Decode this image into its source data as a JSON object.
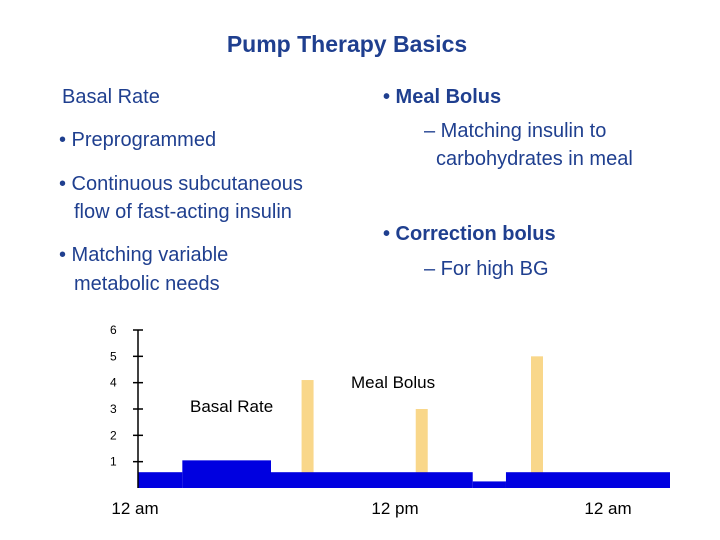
{
  "title": "Pump Therapy Basics",
  "left_column": {
    "heading": "Basal Rate",
    "bullets": [
      {
        "line1": "• Preprogrammed",
        "line2": ""
      },
      {
        "line1": "• Continuous subcutaneous",
        "line2": "flow of fast-acting insulin"
      },
      {
        "line1": "• Matching variable",
        "line2": "metabolic needs"
      }
    ]
  },
  "right_column": {
    "meal_bolus": {
      "heading": "• Meal Bolus",
      "sub_line1": "– Matching insulin to",
      "sub_line2": "carbohydrates in meal"
    },
    "correction_bolus": {
      "heading": "• Correction bolus",
      "sub_line1": "– For high BG"
    }
  },
  "chart_data": {
    "type": "bar",
    "y_ticks": [
      "6",
      "5",
      "4",
      "3",
      "2",
      "1"
    ],
    "ylim": [
      0,
      6
    ],
    "x_ticks": [
      "12 am",
      "12 pm",
      "12 am"
    ],
    "annotations": {
      "basal": "Basal Rate",
      "bolus": "Meal Bolus"
    },
    "colors": {
      "basal": "#0000e0",
      "bolus": "#f9d78a",
      "axis": "#000000"
    },
    "basal_segments": [
      {
        "start_hour": 0,
        "end_hour": 2,
        "level": 0.6
      },
      {
        "start_hour": 2,
        "end_hour": 6,
        "level": 1.05
      },
      {
        "start_hour": 6,
        "end_hour": 15.1,
        "level": 0.6
      },
      {
        "start_hour": 15.1,
        "end_hour": 16.6,
        "level": 0.25
      },
      {
        "start_hour": 16.6,
        "end_hour": 24,
        "level": 0.6
      }
    ],
    "boluses": [
      {
        "hour": 7.65,
        "level": 4.1
      },
      {
        "hour": 12.8,
        "level": 3.0
      },
      {
        "hour": 18.0,
        "level": 5.0
      }
    ]
  }
}
